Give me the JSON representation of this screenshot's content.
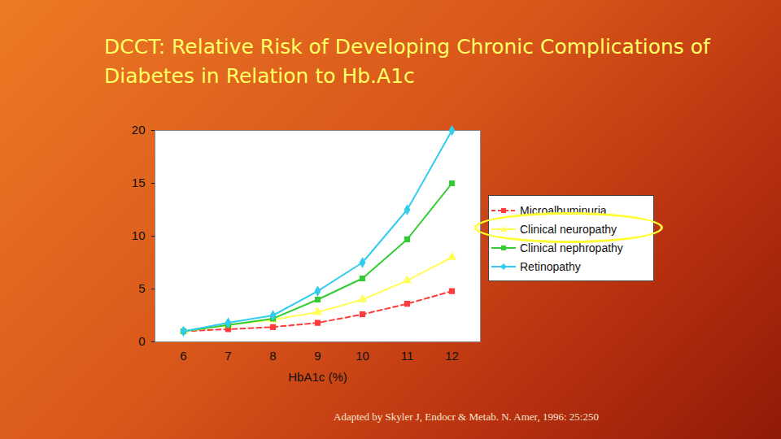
{
  "chart_data": {
    "type": "line",
    "title": "DCCT: Relative Risk of Developing Chronic Complications of Diabetes in Relation to Hb.A1c",
    "x_label": "HbA1c (%)",
    "caption": "Adapted by Skyler J,  Endocr & Metab. N. Amer, 1996: 25:250",
    "categories": [
      "6",
      "7",
      "8",
      "9",
      "10",
      "11",
      "12"
    ],
    "series": [
      {
        "name": "Microalbuminuria",
        "color": "#ff3b3b",
        "marker": "square",
        "line_style": "dashed",
        "values": [
          1,
          1.2,
          1.4,
          1.8,
          2.6,
          3.6,
          4.8
        ]
      },
      {
        "name": "Clinical neuropathy",
        "color": "#ffff55",
        "marker": "triangle",
        "line_style": "solid",
        "values": [
          1,
          1.6,
          2.1,
          2.8,
          4.0,
          5.8,
          8.0
        ]
      },
      {
        "name": "Clinical nephropathy",
        "color": "#33cc33",
        "marker": "square",
        "line_style": "solid",
        "values": [
          1,
          1.6,
          2.2,
          4.0,
          6.0,
          9.7,
          15.0
        ]
      },
      {
        "name": "Retinopathy",
        "color": "#33ccee",
        "marker": "diamond",
        "line_style": "solid",
        "values": [
          1,
          1.8,
          2.5,
          4.8,
          7.5,
          12.5,
          20.0
        ]
      }
    ],
    "ylim": [
      0,
      20
    ],
    "yticks": [
      0,
      5,
      10,
      15,
      20
    ],
    "grid": false,
    "legend": "right"
  }
}
